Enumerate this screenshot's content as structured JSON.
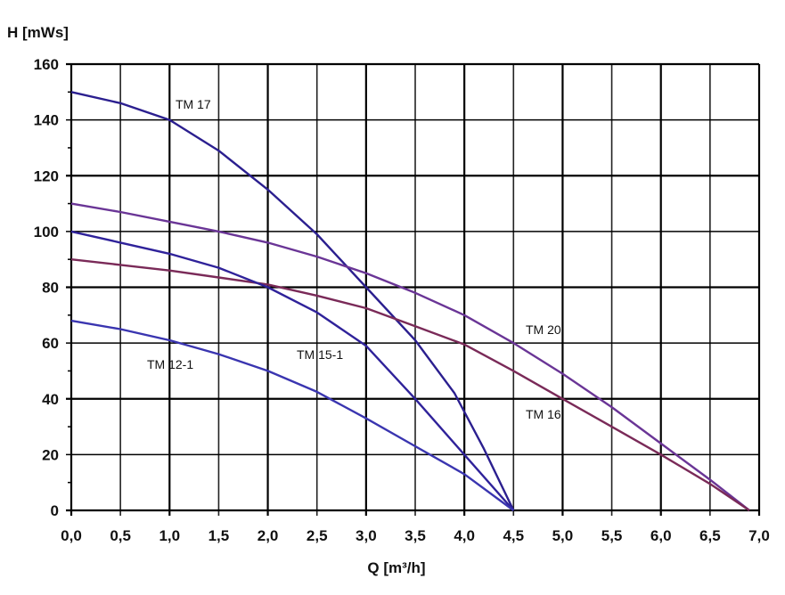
{
  "chart_data": {
    "type": "line",
    "title": "",
    "xlabel": "Q [m³/h]",
    "ylabel": "H [mWs]",
    "xlim": [
      0,
      7
    ],
    "ylim": [
      0,
      160
    ],
    "grid": true,
    "x_ticks": [
      "0,0",
      "0,5",
      "1,0",
      "1,5",
      "2,0",
      "2,5",
      "3,0",
      "3,5",
      "4,0",
      "4,5",
      "5,0",
      "5,5",
      "6,0",
      "6,5",
      "7,0"
    ],
    "y_ticks": [
      "0",
      "20",
      "40",
      "60",
      "80",
      "100",
      "120",
      "140",
      "160"
    ],
    "series": [
      {
        "name": "TM 17",
        "color": "#2b1f8f",
        "x": [
          0,
          0.5,
          1,
          1.5,
          2,
          2.5,
          3,
          3.5,
          3.9,
          4.2,
          4.5
        ],
        "y": [
          150,
          146,
          140,
          129,
          115,
          99,
          80,
          61,
          42,
          22,
          0
        ]
      },
      {
        "name": "TM 20",
        "color": "#6a3596",
        "x": [
          0,
          0.5,
          1,
          1.5,
          2,
          2.5,
          3,
          3.5,
          4,
          4.5,
          5,
          5.5,
          6,
          6.5,
          6.9
        ],
        "y": [
          110,
          107,
          103.5,
          100,
          96,
          91,
          85,
          78,
          70,
          60,
          49,
          37,
          24,
          11,
          0
        ]
      },
      {
        "name": "TM 16",
        "color": "#7a2a58",
        "x": [
          0,
          0.5,
          1,
          1.5,
          2,
          2.5,
          3,
          3.5,
          4,
          4.5,
          5,
          5.5,
          6,
          6.5,
          6.9
        ],
        "y": [
          90,
          88,
          86,
          83.5,
          81,
          77,
          72.5,
          66,
          59.5,
          50,
          40,
          30,
          20,
          9.5,
          0
        ]
      },
      {
        "name": "TM 15-1",
        "color": "#2f229a",
        "x": [
          0,
          0.5,
          1,
          1.5,
          2,
          2.5,
          3,
          3.5,
          4,
          4.5
        ],
        "y": [
          100,
          96,
          92,
          87,
          80,
          71,
          59,
          40,
          20,
          0
        ]
      },
      {
        "name": "TM 12-1",
        "color": "#3a35b0",
        "x": [
          0,
          0.5,
          1,
          1.5,
          2,
          2.5,
          3,
          3.5,
          4,
          4.5
        ],
        "y": [
          68,
          65,
          61,
          56,
          50,
          42.5,
          33,
          23,
          13,
          0
        ]
      }
    ]
  }
}
